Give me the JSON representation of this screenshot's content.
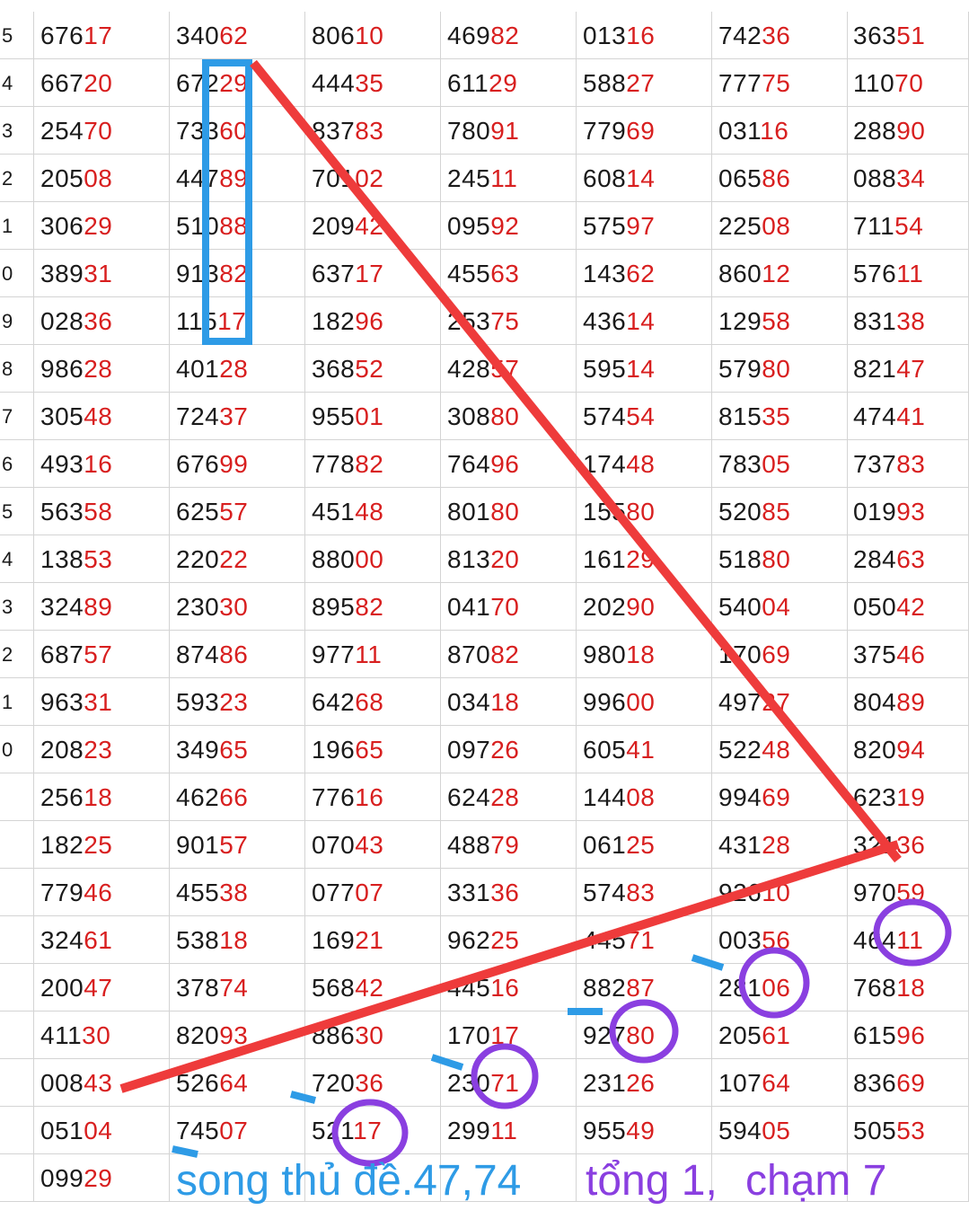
{
  "table": {
    "row_labels": [
      "5",
      "4",
      "3",
      "2",
      "1",
      "0",
      "9",
      "8",
      "7",
      "6",
      "5",
      "4",
      "3",
      "2",
      "1",
      "0",
      "",
      "",
      "",
      "",
      "",
      "",
      "",
      "",
      ""
    ],
    "rows": [
      [
        "67617",
        "34062",
        "80610",
        "46982",
        "01316",
        "74236",
        "36351"
      ],
      [
        "66720",
        "67229",
        "44435",
        "61129",
        "58827",
        "77775",
        "11070"
      ],
      [
        "25470",
        "73360",
        "83783",
        "78091",
        "77969",
        "03116",
        "28890"
      ],
      [
        "20508",
        "44789",
        "70102",
        "24511",
        "60814",
        "06586",
        "08834"
      ],
      [
        "30629",
        "51088",
        "20942",
        "09592",
        "57597",
        "22508",
        "71154"
      ],
      [
        "38931",
        "91382",
        "63717",
        "45563",
        "14362",
        "86012",
        "57611"
      ],
      [
        "02836",
        "11517",
        "18296",
        "25375",
        "43614",
        "12958",
        "83138"
      ],
      [
        "98628",
        "40128",
        "36852",
        "42857",
        "59514",
        "57980",
        "82147"
      ],
      [
        "30548",
        "72437",
        "95501",
        "30880",
        "57454",
        "81535",
        "47441"
      ],
      [
        "49316",
        "67699",
        "77882",
        "76496",
        "17448",
        "78305",
        "73783"
      ],
      [
        "56358",
        "62557",
        "45148",
        "80180",
        "15580",
        "52085",
        "01993"
      ],
      [
        "13853",
        "22022",
        "88000",
        "81320",
        "16129",
        "51880",
        "28463"
      ],
      [
        "32489",
        "23030",
        "89582",
        "04170",
        "20290",
        "54004",
        "05042"
      ],
      [
        "68757",
        "87486",
        "97711",
        "87082",
        "98018",
        "17069",
        "37546"
      ],
      [
        "96331",
        "59323",
        "64268",
        "03418",
        "99600",
        "49727",
        "80489"
      ],
      [
        "20823",
        "34965",
        "19665",
        "09726",
        "60541",
        "52248",
        "82094"
      ],
      [
        "25618",
        "46266",
        "77616",
        "62428",
        "14408",
        "99469",
        "62319"
      ],
      [
        "18225",
        "90157",
        "07043",
        "48879",
        "06125",
        "43128",
        "32136"
      ],
      [
        "77946",
        "45538",
        "07707",
        "33136",
        "57483",
        "92610",
        "97059"
      ],
      [
        "32461",
        "53818",
        "16921",
        "96225",
        "44571",
        "00356",
        "46411"
      ],
      [
        "20047",
        "37874",
        "56842",
        "44516",
        "88287",
        "28106",
        "76818"
      ],
      [
        "41130",
        "82093",
        "88630",
        "17017",
        "92780",
        "20561",
        "61596"
      ],
      [
        "00843",
        "52664",
        "72036",
        "23071",
        "23126",
        "10764",
        "83669"
      ],
      [
        "05104",
        "74507",
        "52117",
        "29911",
        "95549",
        "59405",
        "50553"
      ],
      [
        "09929",
        "",
        "",
        "",
        "",
        "",
        ""
      ]
    ]
  },
  "annotations": {
    "note_sum_line1": "tổng 1,",
    "note_sum_line2": "chạm 7",
    "note_prediction": "song thủ đề.47,74"
  },
  "colors": {
    "head_digits": "#1a1a1a",
    "tail_digits": "#d81f1f",
    "red_line": "#ee3b3b",
    "blue_mark": "#2e9be6",
    "purple_mark": "#8a3fe0"
  }
}
